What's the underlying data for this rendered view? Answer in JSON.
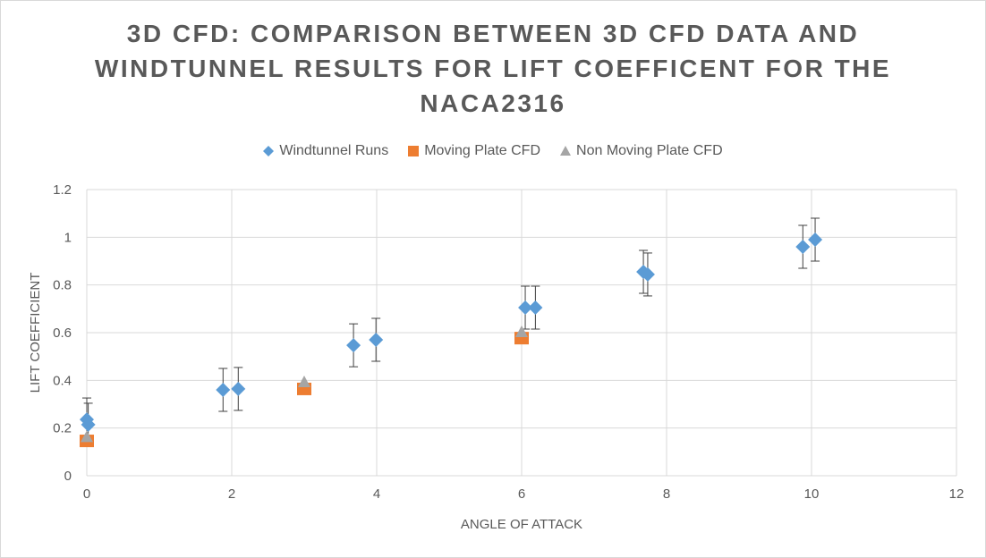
{
  "chart_data": {
    "type": "scatter",
    "title": "3D CFD: COMPARISON BETWEEN 3D CFD DATA AND WINDTUNNEL RESULTS FOR LIFT COEFFICENT FOR THE NACA2316",
    "title_lines": [
      "3D CFD: COMPARISON BETWEEN 3D CFD DATA AND",
      "WINDTUNNEL RESULTS FOR LIFT COEFFICENT FOR THE",
      "NACA2316"
    ],
    "xlabel": "ANGLE OF ATTACK",
    "ylabel": "LIFT COEFFICIENT",
    "xlim": [
      0,
      12
    ],
    "ylim": [
      0,
      1.2
    ],
    "xticks": [
      0,
      2,
      4,
      6,
      8,
      10,
      12
    ],
    "yticks": [
      0,
      0.2,
      0.4,
      0.6,
      0.8,
      1,
      1.2
    ],
    "xtick_labels": [
      "0",
      "2",
      "4",
      "6",
      "8",
      "10",
      "12"
    ],
    "ytick_labels": [
      "0",
      "0.2",
      "0.4",
      "0.6",
      "0.8",
      "1",
      "1.2"
    ],
    "grid": true,
    "legend_position": "top",
    "series": [
      {
        "name": "Windtunnel Runs",
        "marker": "diamond",
        "color": "#5b9bd5",
        "error": 0.09,
        "x": [
          0,
          0.02,
          1.88,
          2.09,
          3.68,
          3.99,
          6.05,
          6.19,
          7.68,
          7.74,
          9.88,
          10.05
        ],
        "y": [
          0.236,
          0.214,
          0.36,
          0.364,
          0.547,
          0.57,
          0.705,
          0.705,
          0.855,
          0.844,
          0.96,
          0.99
        ]
      },
      {
        "name": "Moving Plate CFD",
        "marker": "square",
        "color": "#ed7d31",
        "x": [
          0,
          3,
          6
        ],
        "y": [
          0.146,
          0.364,
          0.577
        ]
      },
      {
        "name": "Non Moving Plate CFD",
        "marker": "triangle",
        "color": "#a5a5a5",
        "x": [
          0,
          3,
          6
        ],
        "y": [
          0.16,
          0.39,
          0.6
        ]
      }
    ]
  }
}
